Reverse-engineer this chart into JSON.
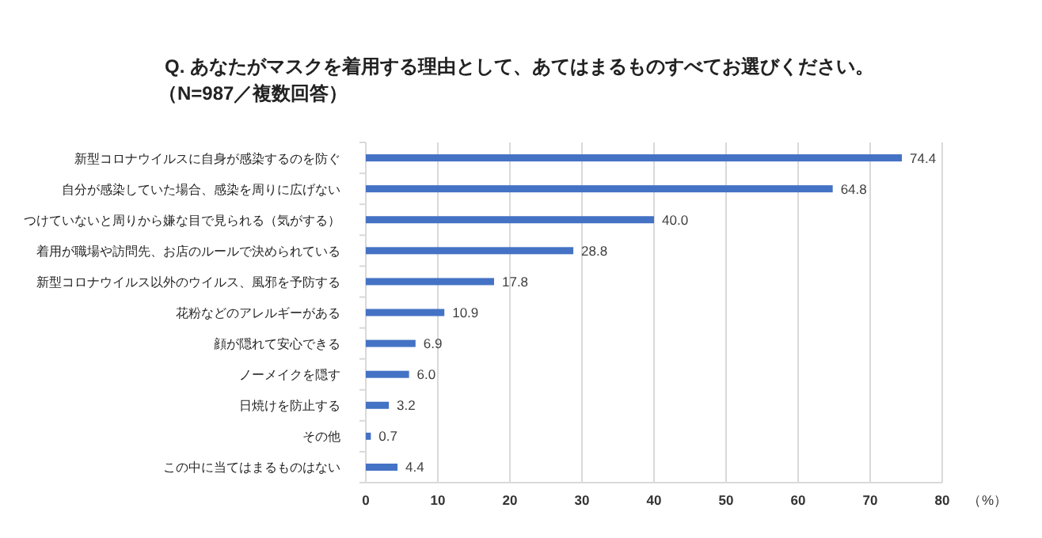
{
  "chart_data": {
    "type": "bar",
    "orientation": "horizontal",
    "title": "Q. あなたがマスクを着用する理由として、あてはまるものすべてお選びください。",
    "subtitle": "（N=987／複数回答）",
    "xlabel": "（%）",
    "categories": [
      "新型コロナウイルスに自身が感染するのを防ぐ",
      "自分が感染していた場合、感染を周りに広げない",
      "つけていないと周りから嫌な目で見られる（気がする）",
      "着用が職場や訪問先、お店のルールで決められている",
      "新型コロナウイルス以外のウイルス、風邪を予防する",
      "花粉などのアレルギーがある",
      "顔が隠れて安心できる",
      "ノーメイクを隠す",
      "日焼けを防止する",
      "その他",
      "この中に当てはまるものはない"
    ],
    "values": [
      74.4,
      64.8,
      40.0,
      28.8,
      17.8,
      10.9,
      6.9,
      6.0,
      3.2,
      0.7,
      4.4
    ],
    "value_labels": [
      "74.4",
      "64.8",
      "40.0",
      "28.8",
      "17.8",
      "10.9",
      "6.9",
      "6.0",
      "3.2",
      "0.7",
      "4.4"
    ],
    "color": "#4472c4",
    "xlim": [
      0,
      80
    ],
    "xticks": [
      0,
      10,
      20,
      30,
      40,
      50,
      60,
      70,
      80
    ],
    "grid": "x"
  }
}
